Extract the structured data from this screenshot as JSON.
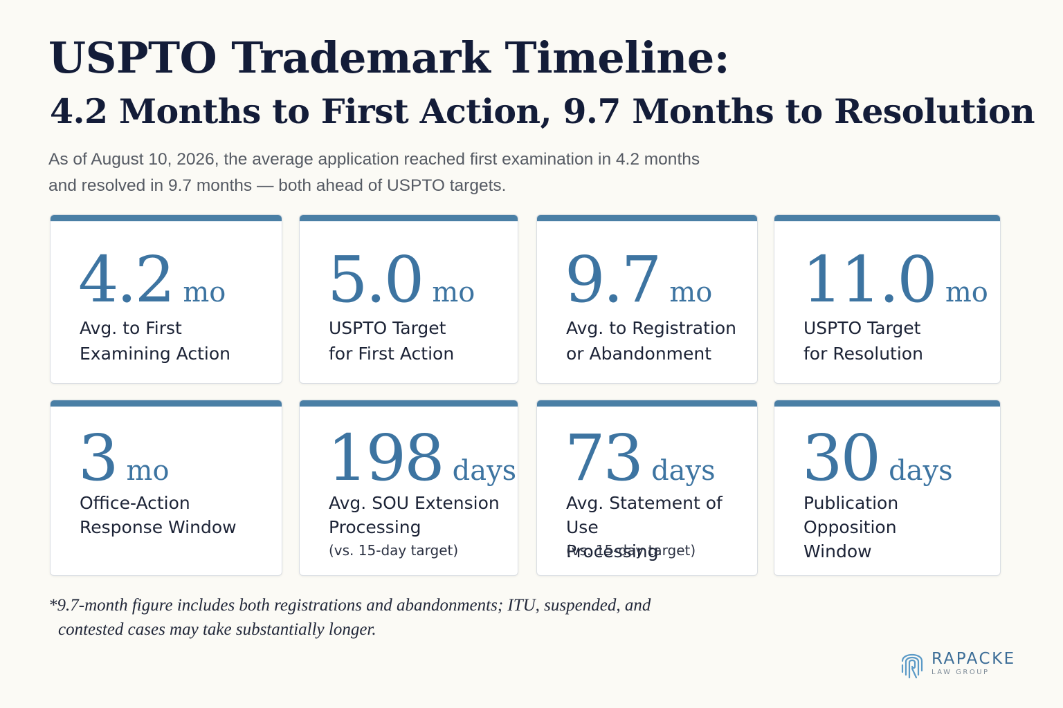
{
  "header": {
    "title": "USPTO Trademark Timeline:",
    "subtitle": "4.2 Months to First Action, 9.7 Months to Resolution",
    "intro_line1": "As of August 10, 2026, the average application reached first examination in 4.2 months",
    "intro_line2": "and resolved in 9.7 months — both ahead of USPTO targets."
  },
  "stats": [
    {
      "value": "4.2",
      "unit": "mo",
      "label": [
        "Avg. to First",
        "Examining Action"
      ],
      "note": ""
    },
    {
      "value": "5.0",
      "unit": "mo",
      "label": [
        "USPTO Target",
        "for First Action"
      ],
      "note": ""
    },
    {
      "value": "9.7",
      "unit": "mo",
      "label": [
        "Avg. to Registration",
        "or Abandonment"
      ],
      "note": ""
    },
    {
      "value": "11.0",
      "unit": "mo",
      "label": [
        "USPTO Target",
        "for Resolution"
      ],
      "note": ""
    },
    {
      "value": "3",
      "unit": "mo",
      "label": [
        "Office-Action",
        "Response Window"
      ],
      "note": ""
    },
    {
      "value": "198",
      "unit": "days",
      "label": [
        "Avg. SOU Extension",
        "Processing"
      ],
      "note": "(vs. 15-day target)"
    },
    {
      "value": "73",
      "unit": "days",
      "label": [
        "Avg. Statement of Use",
        "Processing"
      ],
      "note": "(vs. 15-day target)"
    },
    {
      "value": "30",
      "unit": "days",
      "label": [
        "Publication Opposition",
        "Window"
      ],
      "note": ""
    }
  ],
  "footnote": {
    "line1": "*9.7-month figure includes both registrations and abandonments; ITU, suspended, and",
    "line2": "contested cases may take substantially longer."
  },
  "logo": {
    "name": "RAPACKE",
    "sub": "LAW GROUP",
    "icon": "fingerprint-icon"
  },
  "colors": {
    "accent": "#4a7fa5",
    "figure": "#3d74a1",
    "heading": "#131c38",
    "background": "#fbfaf5"
  }
}
